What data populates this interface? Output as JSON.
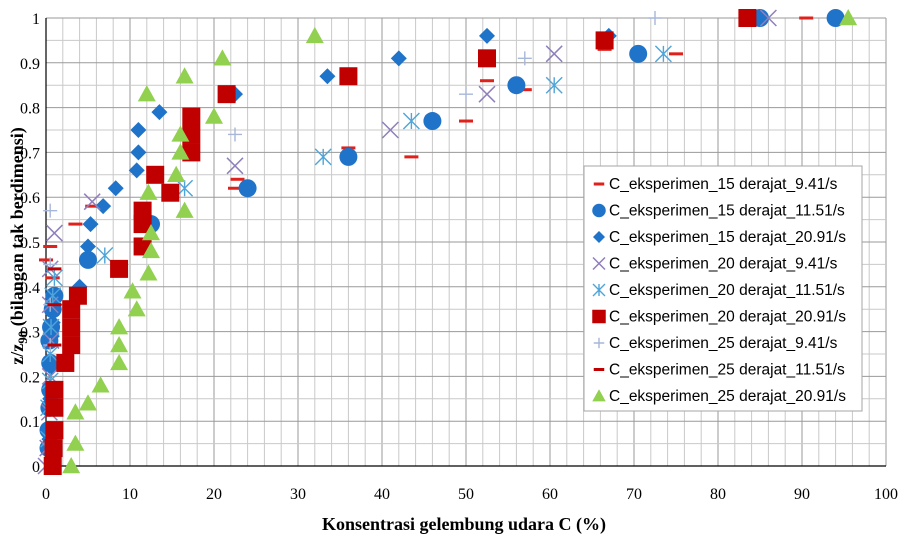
{
  "chart_data": {
    "type": "scatter",
    "xlabel": "Konsentrasi gelembung udara C (%)",
    "ylabel": "z/z90 (bilangan tak berdimensi)",
    "ylabel_main": "z/z",
    "ylabel_sub": "90",
    "ylabel_rest": " (bilangan tak berdimensi)",
    "xlim": [
      0,
      100
    ],
    "ylim": [
      0,
      1
    ],
    "x_ticks": [
      "0",
      "10",
      "20",
      "30",
      "40",
      "50",
      "60",
      "70",
      "80",
      "90",
      "100"
    ],
    "y_ticks": [
      "0",
      "0.1",
      "0.2",
      "0.3",
      "0.4",
      "0.5",
      "0.6",
      "0.7",
      "0.8",
      "0.9",
      "1"
    ],
    "grid": true,
    "legend_position": "right",
    "series": [
      {
        "name": "C_eksperimen_15 derajat_9.41/s",
        "marker": "dash",
        "color": "#e0201b",
        "points": [
          [
            0,
            0.46
          ],
          [
            0.5,
            0.49
          ],
          [
            0.8,
            0.42
          ],
          [
            3.5,
            0.54
          ],
          [
            5.5,
            0.58
          ],
          [
            22.5,
            0.62
          ],
          [
            22.8,
            0.64
          ],
          [
            36,
            0.71
          ],
          [
            43.5,
            0.69
          ],
          [
            46,
            0.78
          ],
          [
            50,
            0.77
          ],
          [
            52.5,
            0.86
          ],
          [
            57,
            0.84
          ],
          [
            66.5,
            0.93
          ],
          [
            75,
            0.92
          ],
          [
            90.5,
            1
          ]
        ]
      },
      {
        "name": "C_eksperimen_15 derajat_11.51/s",
        "marker": "circle",
        "color": "#1f73c9",
        "points": [
          [
            0.3,
            0.04
          ],
          [
            0.3,
            0.08
          ],
          [
            0.4,
            0.13
          ],
          [
            0.5,
            0.17
          ],
          [
            0.5,
            0.23
          ],
          [
            0.4,
            0.28
          ],
          [
            0.6,
            0.31
          ],
          [
            0.8,
            0.35
          ],
          [
            1,
            0.38
          ],
          [
            5,
            0.46
          ],
          [
            12.5,
            0.54
          ],
          [
            24,
            0.62
          ],
          [
            36,
            0.69
          ],
          [
            46,
            0.77
          ],
          [
            56,
            0.85
          ],
          [
            70.5,
            0.92
          ],
          [
            85,
            1
          ],
          [
            94,
            1
          ]
        ]
      },
      {
        "name": "C_eksperimen_15 derajat_20.91/s",
        "marker": "diamond",
        "color": "#1f73c9",
        "points": [
          [
            0.4,
            0.06
          ],
          [
            0.5,
            0.15
          ],
          [
            0.6,
            0.22
          ],
          [
            0.7,
            0.29
          ],
          [
            0.8,
            0.32
          ],
          [
            1,
            0.36
          ],
          [
            4,
            0.4
          ],
          [
            5,
            0.46
          ],
          [
            5,
            0.49
          ],
          [
            5.3,
            0.54
          ],
          [
            6.8,
            0.58
          ],
          [
            8.3,
            0.62
          ],
          [
            10.8,
            0.66
          ],
          [
            11,
            0.7
          ],
          [
            11,
            0.75
          ],
          [
            13.5,
            0.79
          ],
          [
            22.5,
            0.83
          ],
          [
            33.5,
            0.87
          ],
          [
            42,
            0.91
          ],
          [
            52.5,
            0.96
          ],
          [
            67,
            0.96
          ],
          [
            94,
            1
          ]
        ]
      },
      {
        "name": "C_eksperimen_20 derajat_9.41/s",
        "marker": "x",
        "color": "#8f7fbd",
        "points": [
          [
            0,
            0
          ],
          [
            0.2,
            0.04
          ],
          [
            0.4,
            0.12
          ],
          [
            0.5,
            0.2
          ],
          [
            0.6,
            0.28
          ],
          [
            0.5,
            0.36
          ],
          [
            0.5,
            0.44
          ],
          [
            1,
            0.52
          ],
          [
            5.5,
            0.59
          ],
          [
            22.5,
            0.67
          ],
          [
            41,
            0.75
          ],
          [
            52.5,
            0.83
          ],
          [
            60.5,
            0.92
          ],
          [
            86,
            1
          ]
        ]
      },
      {
        "name": "C_eksperimen_20 derajat_11.51/s",
        "marker": "asterisk",
        "color": "#4fa4d8",
        "points": [
          [
            0.3,
            0.06
          ],
          [
            0.3,
            0.13
          ],
          [
            0.5,
            0.19
          ],
          [
            0.5,
            0.25
          ],
          [
            0.6,
            0.31
          ],
          [
            0.8,
            0.38
          ],
          [
            1,
            0.42
          ],
          [
            7,
            0.47
          ],
          [
            16.5,
            0.62
          ],
          [
            33,
            0.69
          ],
          [
            43.5,
            0.77
          ],
          [
            60.5,
            0.85
          ],
          [
            73.5,
            0.92
          ]
        ]
      },
      {
        "name": "C_eksperimen_20 derajat_20.91/s",
        "marker": "square",
        "color": "#c00000",
        "points": [
          [
            0.8,
            0
          ],
          [
            0.9,
            0.04
          ],
          [
            1,
            0.08
          ],
          [
            1,
            0.13
          ],
          [
            1,
            0.17
          ],
          [
            2.3,
            0.23
          ],
          [
            3,
            0.27
          ],
          [
            3,
            0.31
          ],
          [
            3,
            0.35
          ],
          [
            3.8,
            0.38
          ],
          [
            8.7,
            0.44
          ],
          [
            11.5,
            0.49
          ],
          [
            11.5,
            0.54
          ],
          [
            11.5,
            0.57
          ],
          [
            13,
            0.65
          ],
          [
            14.8,
            0.61
          ],
          [
            17.3,
            0.7
          ],
          [
            17.3,
            0.74
          ],
          [
            17.3,
            0.78
          ],
          [
            21.5,
            0.83
          ],
          [
            36,
            0.87
          ],
          [
            52.5,
            0.91
          ],
          [
            66.5,
            0.95
          ],
          [
            83.5,
            1
          ]
        ]
      },
      {
        "name": "C_eksperimen_25 derajat_9.41/s",
        "marker": "plus",
        "color": "#a7b7d9",
        "points": [
          [
            0.5,
            0.27
          ],
          [
            0.5,
            0.36
          ],
          [
            0.5,
            0.45
          ],
          [
            0.5,
            0.57
          ],
          [
            22.5,
            0.74
          ],
          [
            50,
            0.83
          ],
          [
            57,
            0.91
          ],
          [
            72.5,
            1
          ]
        ]
      },
      {
        "name": "C_eksperimen_25 derajat_11.51/s",
        "marker": "dash",
        "color": "#c00000",
        "points": [
          [
            0.8,
            0.09
          ],
          [
            0.9,
            0.18
          ],
          [
            1,
            0.27
          ],
          [
            1,
            0.36
          ],
          [
            1,
            0.44
          ]
        ]
      },
      {
        "name": "C_eksperimen_25 derajat_20.91/s",
        "marker": "triangle",
        "color": "#92d050",
        "points": [
          [
            3,
            0
          ],
          [
            3.5,
            0.05
          ],
          [
            3.5,
            0.12
          ],
          [
            5,
            0.14
          ],
          [
            6.5,
            0.18
          ],
          [
            8.7,
            0.23
          ],
          [
            8.7,
            0.27
          ],
          [
            8.7,
            0.31
          ],
          [
            10.3,
            0.39
          ],
          [
            10.8,
            0.35
          ],
          [
            12.2,
            0.43
          ],
          [
            12.5,
            0.48
          ],
          [
            12.5,
            0.52
          ],
          [
            12.2,
            0.61
          ],
          [
            12,
            0.83
          ],
          [
            15.5,
            0.65
          ],
          [
            16,
            0.7
          ],
          [
            16,
            0.74
          ],
          [
            16.5,
            0.57
          ],
          [
            16.5,
            0.87
          ],
          [
            20,
            0.78
          ],
          [
            21,
            0.91
          ],
          [
            32,
            0.96
          ],
          [
            95.5,
            1
          ]
        ]
      }
    ]
  }
}
